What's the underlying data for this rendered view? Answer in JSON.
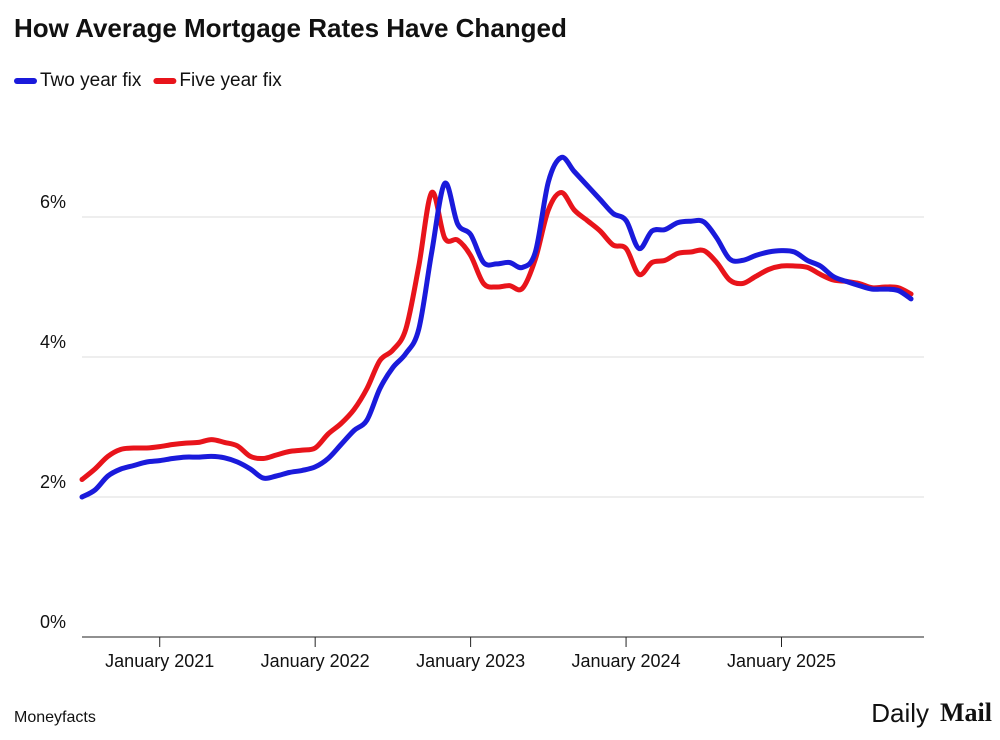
{
  "chart_data": {
    "type": "line",
    "title": "How Average Mortgage Rates Have Changed",
    "source": "Moneyfacts",
    "logo": [
      "Daily",
      "Mail"
    ],
    "x": [
      "2020-07",
      "2020-08",
      "2020-09",
      "2020-10",
      "2020-11",
      "2020-12",
      "2021-01",
      "2021-02",
      "2021-03",
      "2021-04",
      "2021-05",
      "2021-06",
      "2021-07",
      "2021-08",
      "2021-09",
      "2021-10",
      "2021-11",
      "2021-12",
      "2022-01",
      "2022-02",
      "2022-03",
      "2022-04",
      "2022-05",
      "2022-06",
      "2022-07",
      "2022-08",
      "2022-09",
      "2022-10",
      "2022-11",
      "2022-12",
      "2023-01",
      "2023-02",
      "2023-03",
      "2023-04",
      "2023-05",
      "2023-06",
      "2023-07",
      "2023-08",
      "2023-09",
      "2023-10",
      "2023-11",
      "2023-12",
      "2024-01",
      "2024-02",
      "2024-03",
      "2024-04",
      "2024-05",
      "2024-06",
      "2024-07",
      "2024-08",
      "2024-09",
      "2024-10",
      "2024-11",
      "2024-12",
      "2025-01",
      "2025-02",
      "2025-03",
      "2025-04",
      "2025-05",
      "2025-06",
      "2025-07",
      "2025-08",
      "2025-09",
      "2025-10",
      "2025-11"
    ],
    "xlim": [
      "2020-07",
      "2025-12"
    ],
    "xticks": [
      {
        "value": "2021-01",
        "label": "January 2021"
      },
      {
        "value": "2022-01",
        "label": "January 2022"
      },
      {
        "value": "2023-01",
        "label": "January 2023"
      },
      {
        "value": "2024-01",
        "label": "January 2024"
      },
      {
        "value": "2025-01",
        "label": "January 2025"
      }
    ],
    "ylim": [
      0,
      7.5
    ],
    "yticks": [
      {
        "value": 0,
        "label": "0%"
      },
      {
        "value": 2,
        "label": "2%"
      },
      {
        "value": 4,
        "label": "4%"
      },
      {
        "value": 6,
        "label": "6%"
      }
    ],
    "grid": true,
    "legend": "top-left",
    "series": [
      {
        "name": "Two year fix",
        "color": "#1a1adb",
        "values": [
          2.0,
          2.1,
          2.3,
          2.4,
          2.45,
          2.5,
          2.52,
          2.55,
          2.57,
          2.57,
          2.58,
          2.56,
          2.5,
          2.4,
          2.27,
          2.3,
          2.35,
          2.38,
          2.43,
          2.55,
          2.75,
          2.95,
          3.1,
          3.55,
          3.85,
          4.05,
          4.4,
          5.5,
          6.48,
          5.9,
          5.75,
          5.35,
          5.33,
          5.35,
          5.28,
          5.5,
          6.5,
          6.85,
          6.65,
          6.45,
          6.25,
          6.05,
          5.95,
          5.55,
          5.8,
          5.82,
          5.92,
          5.94,
          5.93,
          5.7,
          5.4,
          5.38,
          5.45,
          5.5,
          5.52,
          5.5,
          5.38,
          5.3,
          5.15,
          5.08,
          5.02,
          4.97,
          4.97,
          4.95,
          4.83
        ]
      },
      {
        "name": "Five year fix",
        "color": "#e8141b",
        "values": [
          2.25,
          2.4,
          2.58,
          2.68,
          2.7,
          2.7,
          2.72,
          2.75,
          2.77,
          2.78,
          2.82,
          2.78,
          2.73,
          2.58,
          2.55,
          2.6,
          2.65,
          2.67,
          2.7,
          2.9,
          3.05,
          3.25,
          3.55,
          3.95,
          4.1,
          4.4,
          5.3,
          6.35,
          5.7,
          5.67,
          5.45,
          5.05,
          5.0,
          5.02,
          4.98,
          5.4,
          6.1,
          6.35,
          6.1,
          5.95,
          5.8,
          5.6,
          5.55,
          5.18,
          5.35,
          5.38,
          5.48,
          5.5,
          5.52,
          5.35,
          5.1,
          5.05,
          5.15,
          5.25,
          5.3,
          5.3,
          5.28,
          5.18,
          5.1,
          5.08,
          5.05,
          4.99,
          5.0,
          4.99,
          4.9
        ]
      }
    ]
  }
}
